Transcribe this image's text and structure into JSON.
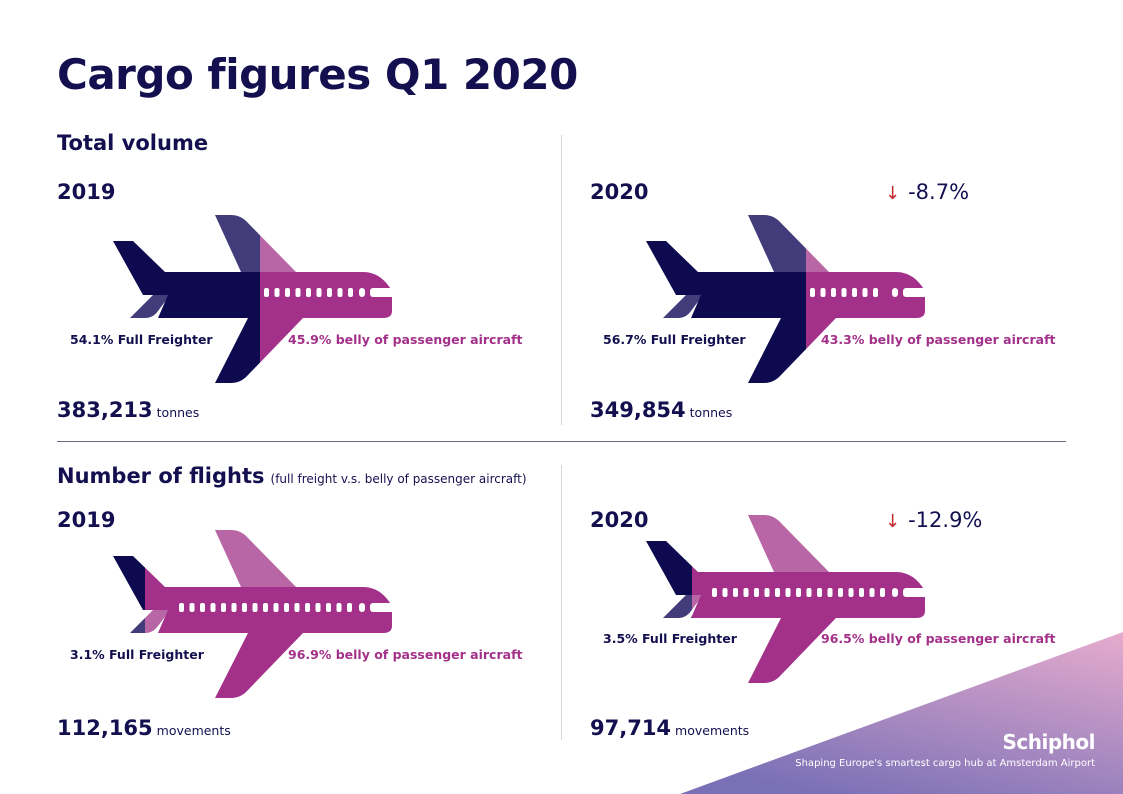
{
  "title": "Cargo figures Q1 2020",
  "colors": {
    "freighter": "#0d0a4f",
    "freighter_light": "#433c7a",
    "belly": "#a3318a",
    "belly_light": "#b966a6",
    "down_arrow": "#c0282d"
  },
  "volume": {
    "heading": "Total volume",
    "y2019": {
      "year": "2019",
      "freighter_label": "54.1% Full Freighter",
      "belly_label": "45.9% belly of passenger aircraft",
      "total": "383,213",
      "unit": "tonnes"
    },
    "y2020": {
      "year": "2020",
      "change": "-8.7%",
      "freighter_label": "56.7% Full Freighter",
      "belly_label": "43.3% belly of passenger aircraft",
      "total": "349,854",
      "unit": "tonnes"
    }
  },
  "flights": {
    "heading": "Number of flights",
    "subheading": "(full freight v.s. belly of passenger aircraft)",
    "y2019": {
      "year": "2019",
      "freighter_label": "3.1% Full Freighter",
      "belly_label": "96.9% belly of passenger aircraft",
      "total": "112,165",
      "unit": "movements"
    },
    "y2020": {
      "year": "2020",
      "change": "-12.9%",
      "freighter_label": "3.5% Full Freighter",
      "belly_label": "96.5% belly of passenger aircraft",
      "total": "97,714",
      "unit": "movements"
    }
  },
  "footer": {
    "brand": "Schiphol",
    "tagline": "Shaping Europe's smartest cargo hub at Amsterdam Airport"
  },
  "chart_data": [
    {
      "type": "bar",
      "title": "Total volume",
      "categories": [
        "2019",
        "2020"
      ],
      "series": [
        {
          "name": "Full Freighter (%)",
          "values": [
            54.1,
            56.7
          ]
        },
        {
          "name": "Belly of passenger aircraft (%)",
          "values": [
            45.9,
            43.3
          ]
        }
      ],
      "totals": [
        383213,
        349854
      ],
      "unit": "tonnes",
      "change": -8.7
    },
    {
      "type": "bar",
      "title": "Number of flights",
      "categories": [
        "2019",
        "2020"
      ],
      "series": [
        {
          "name": "Full Freighter (%)",
          "values": [
            3.1,
            3.5
          ]
        },
        {
          "name": "Belly of passenger aircraft (%)",
          "values": [
            96.9,
            96.5
          ]
        }
      ],
      "totals": [
        112165,
        97714
      ],
      "unit": "movements",
      "change": -12.9
    }
  ]
}
